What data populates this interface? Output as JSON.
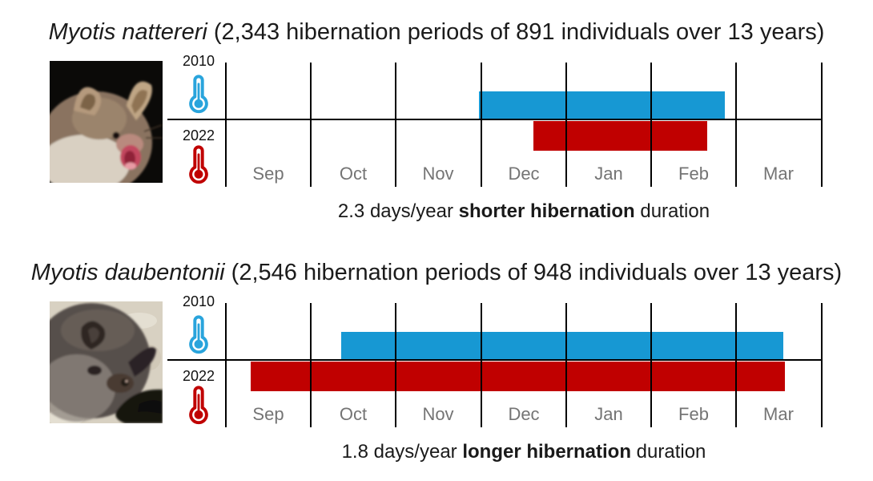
{
  "colors": {
    "bar_2010_blue": "#1798d3",
    "bar_2022_red": "#c00000",
    "axis_black": "#000000",
    "month_label_gray": "#747474",
    "text_dark": "#1b1b1b"
  },
  "months": [
    "Sep",
    "Oct",
    "Nov",
    "Dec",
    "Jan",
    "Feb",
    "Mar"
  ],
  "sections": [
    {
      "species": "Myotis nattereri",
      "stats": "(2,343 hibernation periods of 891 individuals over 13 years)",
      "year_top": "2010",
      "year_bottom": "2022",
      "caption_prefix": "2.3 days/year ",
      "caption_bold": "shorter hibernation",
      "caption_suffix": " duration",
      "photo_desc": "brown Natterer's bat with open mouth on black background"
    },
    {
      "species": "Myotis daubentonii",
      "stats": "(2,546 hibernation periods of 948 individuals over 13 years)",
      "year_top": "2010",
      "year_bottom": "2022",
      "caption_prefix": "1.8 days/year ",
      "caption_bold": "longer hibernation",
      "caption_suffix": " duration",
      "photo_desc": "dark grey Daubenton's bat on pale textured background"
    }
  ],
  "chart_data": [
    {
      "type": "bar",
      "orientation": "horizontal-span-timeline",
      "title": "Myotis nattereri hibernation period, 2010 vs 2022",
      "x_axis": {
        "unit": "months (Sep-Mar)",
        "categories_between_ticks": [
          "Sep",
          "Oct",
          "Nov",
          "Dec",
          "Jan",
          "Feb",
          "Mar"
        ],
        "range_month_units": [
          0,
          7
        ],
        "tick_count": 8
      },
      "series": [
        {
          "name": "2010",
          "color": "#1798d3",
          "start_month_unit": 2.97,
          "end_month_unit": 5.86,
          "approx_span": "late Nov to late Feb"
        },
        {
          "name": "2022",
          "color": "#c00000",
          "start_month_unit": 3.61,
          "end_month_unit": 5.65,
          "approx_span": "mid Dec to mid Feb"
        }
      ],
      "annotation": "2.3 days/year shorter hibernation duration",
      "legend_position": "left thermometer icons (2010 blue above axis, 2022 red below axis)"
    },
    {
      "type": "bar",
      "orientation": "horizontal-span-timeline",
      "title": "Myotis daubentonii hibernation period, 2010 vs 2022",
      "x_axis": {
        "unit": "months (Sep-Mar)",
        "categories_between_ticks": [
          "Sep",
          "Oct",
          "Nov",
          "Dec",
          "Jan",
          "Feb",
          "Mar"
        ],
        "range_month_units": [
          0,
          7
        ],
        "tick_count": 8
      },
      "series": [
        {
          "name": "2010",
          "color": "#1798d3",
          "start_month_unit": 1.35,
          "end_month_unit": 6.55,
          "approx_span": "mid Oct to mid Mar"
        },
        {
          "name": "2022",
          "color": "#c00000",
          "start_month_unit": 0.29,
          "end_month_unit": 6.57,
          "approx_span": "early Sep to mid Mar"
        }
      ],
      "annotation": "1.8 days/year longer hibernation duration",
      "legend_position": "left thermometer icons (2010 blue above axis, 2022 red below axis)"
    }
  ]
}
